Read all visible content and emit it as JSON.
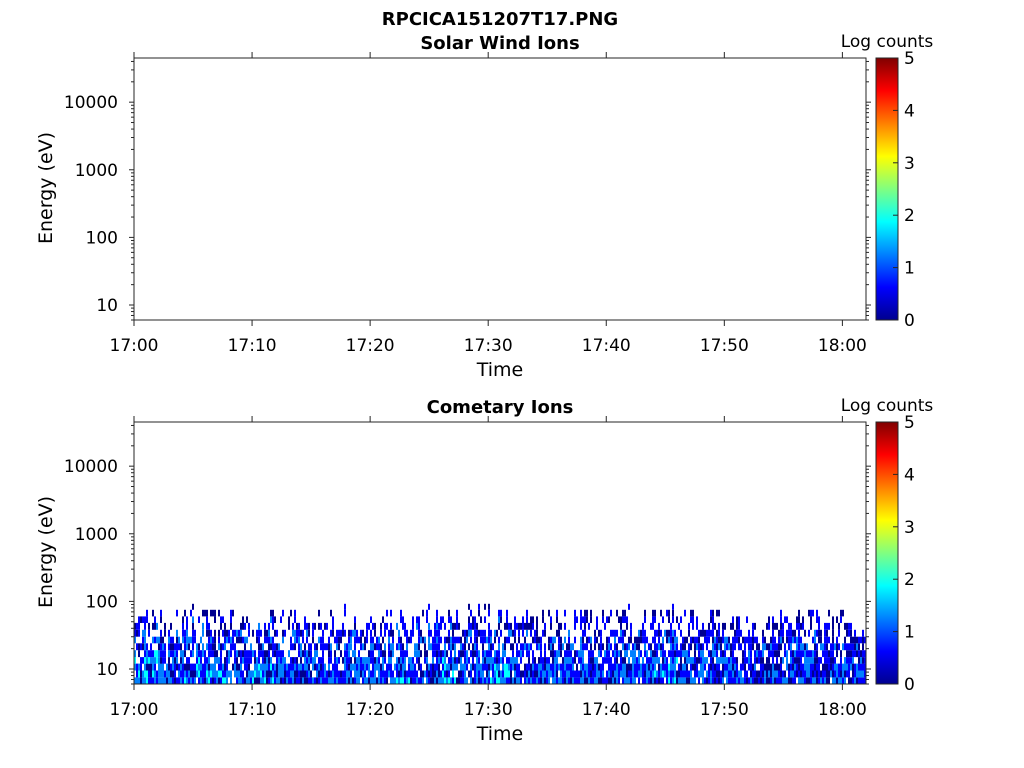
{
  "figure": {
    "title": "RPCICA151207T17.PNG"
  },
  "colors": {
    "background": "#ffffff",
    "axis": "#262626",
    "colormap": [
      "#00008f",
      "#0000ff",
      "#0080ff",
      "#00ffff",
      "#80ff80",
      "#ffff00",
      "#ff8000",
      "#ff0000",
      "#800000"
    ]
  },
  "chart_data": [
    {
      "type": "heatmap",
      "title": "Solar Wind Ions",
      "xlabel": "Time",
      "ylabel": "Energy (eV)",
      "x_ticks": [
        "17:00",
        "17:10",
        "17:20",
        "17:30",
        "17:40",
        "17:50",
        "18:00"
      ],
      "y_ticks": [
        "10",
        "100",
        "1000",
        "10000"
      ],
      "yscale": "log",
      "ylim": [
        6,
        45000
      ],
      "xlim": [
        "17:00",
        "18:02"
      ],
      "grid": false,
      "colorbar": {
        "label": "Log counts",
        "ticks": [
          "0",
          "1",
          "2",
          "3",
          "4",
          "5"
        ],
        "range": [
          0,
          5
        ],
        "colormap": "jet"
      },
      "data_summary": "no counts (empty)",
      "columns": []
    },
    {
      "type": "heatmap",
      "title": "Cometary Ions",
      "xlabel": "Time",
      "ylabel": "Energy (eV)",
      "x_ticks": [
        "17:00",
        "17:10",
        "17:20",
        "17:30",
        "17:40",
        "17:50",
        "18:00"
      ],
      "y_ticks": [
        "10",
        "100",
        "1000",
        "10000"
      ],
      "yscale": "log",
      "ylim": [
        6,
        45000
      ],
      "xlim": [
        "17:00",
        "18:02"
      ],
      "grid": false,
      "colorbar": {
        "label": "Log counts",
        "ticks": [
          "0",
          "1",
          "2",
          "3",
          "4",
          "5"
        ],
        "range": [
          0,
          5
        ],
        "colormap": "jet"
      },
      "data_summary": "Counts confined to ~6-85 eV; mostly log counts 0-1.5 with occasional ~2; upper edge ~20-80 eV fluctuating over time",
      "columns": [
        {
          "t": "17:00",
          "top_eV": 80,
          "peak": 1.8
        },
        {
          "t": "17:02",
          "top_eV": 60,
          "peak": 1.5
        },
        {
          "t": "17:04",
          "top_eV": 70,
          "peak": 1.7
        },
        {
          "t": "17:06",
          "top_eV": 55,
          "peak": 1.6
        },
        {
          "t": "17:08",
          "top_eV": 65,
          "peak": 1.5
        },
        {
          "t": "17:10",
          "top_eV": 75,
          "peak": 1.6
        },
        {
          "t": "17:12",
          "top_eV": 60,
          "peak": 1.4
        },
        {
          "t": "17:14",
          "top_eV": 65,
          "peak": 1.5
        },
        {
          "t": "17:16",
          "top_eV": 70,
          "peak": 1.4
        },
        {
          "t": "17:18",
          "top_eV": 60,
          "peak": 1.5
        },
        {
          "t": "17:20",
          "top_eV": 65,
          "peak": 1.4
        },
        {
          "t": "17:22",
          "top_eV": 70,
          "peak": 1.6
        },
        {
          "t": "17:24",
          "top_eV": 75,
          "peak": 1.5
        },
        {
          "t": "17:26",
          "top_eV": 65,
          "peak": 1.6
        },
        {
          "t": "17:28",
          "top_eV": 70,
          "peak": 1.5
        },
        {
          "t": "17:30",
          "top_eV": 75,
          "peak": 1.6
        },
        {
          "t": "17:32",
          "top_eV": 65,
          "peak": 1.4
        },
        {
          "t": "17:34",
          "top_eV": 70,
          "peak": 1.5
        },
        {
          "t": "17:36",
          "top_eV": 65,
          "peak": 1.4
        },
        {
          "t": "17:38",
          "top_eV": 60,
          "peak": 1.5
        },
        {
          "t": "17:40",
          "top_eV": 70,
          "peak": 1.5
        },
        {
          "t": "17:42",
          "top_eV": 65,
          "peak": 1.4
        },
        {
          "t": "17:44",
          "top_eV": 75,
          "peak": 1.7
        },
        {
          "t": "17:46",
          "top_eV": 60,
          "peak": 1.4
        },
        {
          "t": "17:48",
          "top_eV": 65,
          "peak": 1.3
        },
        {
          "t": "17:50",
          "top_eV": 60,
          "peak": 1.3
        },
        {
          "t": "17:52",
          "top_eV": 55,
          "peak": 1.2
        },
        {
          "t": "17:54",
          "top_eV": 60,
          "peak": 1.3
        },
        {
          "t": "17:56",
          "top_eV": 80,
          "peak": 1.4
        },
        {
          "t": "17:58",
          "top_eV": 60,
          "peak": 1.3
        },
        {
          "t": "18:00",
          "top_eV": 55,
          "peak": 1.2
        },
        {
          "t": "18:02",
          "top_eV": 55,
          "peak": 1.2
        }
      ]
    }
  ]
}
